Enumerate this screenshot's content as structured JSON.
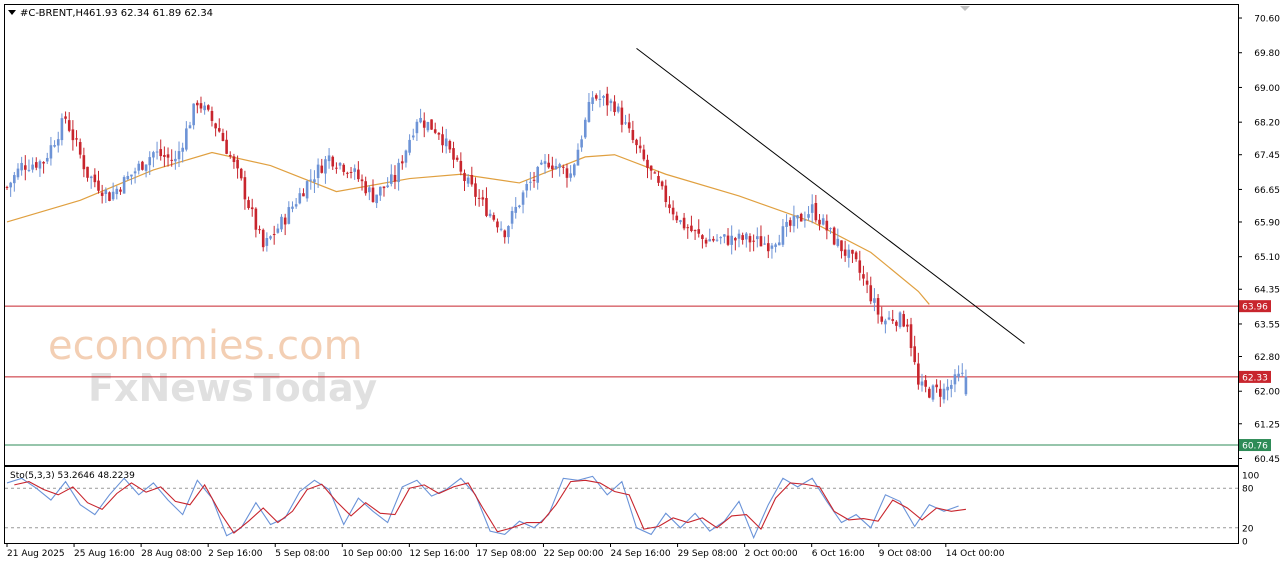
{
  "header": {
    "symbol": "#C-BRENT,H4",
    "ohlc": "61.93 62.34 61.89 62.34",
    "menu_icon": "triangle-down-icon"
  },
  "watermark": {
    "line1": "economies.com",
    "line2": "FxNewsToday"
  },
  "colors": {
    "bull": "#6d93d6",
    "bear": "#c8252d",
    "ma": "#e0a040",
    "hline": "#c8252d",
    "hline_green": "#2e8b57",
    "trendline": "#000000",
    "stoch_main": "#6a93d8",
    "stoch_signal": "#c8252d"
  },
  "chart_data": [
    {
      "type": "candlestick",
      "title": "#C-BRENT,H4",
      "ohlc_last": [
        61.93,
        62.34,
        61.89,
        62.34
      ],
      "ylim": [
        60.3,
        70.9
      ],
      "yticks": [
        "70.60",
        "69.80",
        "69.00",
        "68.20",
        "67.45",
        "66.65",
        "65.90",
        "65.10",
        "64.35",
        "63.55",
        "62.80",
        "62.00",
        "61.25",
        "60.45"
      ],
      "xtick_labels": [
        "21 Aug 2025",
        "25 Aug 16:00",
        "28 Aug 08:00",
        "2 Sep 16:00",
        "5 Sep 08:00",
        "10 Sep 00:00",
        "12 Sep 16:00",
        "17 Sep 08:00",
        "22 Sep 00:00",
        "24 Sep 16:00",
        "29 Sep 08:00",
        "2 Oct 00:00",
        "6 Oct 16:00",
        "9 Oct 08:00",
        "14 Oct 00:00"
      ],
      "close_path": [
        [
          0,
          66.7
        ],
        [
          4,
          67.2
        ],
        [
          10,
          67.3
        ],
        [
          16,
          68.3
        ],
        [
          22,
          67.0
        ],
        [
          28,
          66.5
        ],
        [
          34,
          67.0
        ],
        [
          40,
          67.5
        ],
        [
          46,
          67.3
        ],
        [
          52,
          68.7
        ],
        [
          58,
          68.0
        ],
        [
          64,
          66.8
        ],
        [
          70,
          65.3
        ],
        [
          76,
          66.0
        ],
        [
          82,
          66.8
        ],
        [
          88,
          67.4
        ],
        [
          94,
          67.1
        ],
        [
          100,
          66.5
        ],
        [
          106,
          66.9
        ],
        [
          112,
          68.3
        ],
        [
          118,
          68.0
        ],
        [
          124,
          67.0
        ],
        [
          130,
          66.3
        ],
        [
          136,
          65.7
        ],
        [
          142,
          66.7
        ],
        [
          148,
          67.3
        ],
        [
          154,
          67.0
        ],
        [
          160,
          68.8
        ],
        [
          166,
          68.6
        ],
        [
          172,
          67.6
        ],
        [
          178,
          66.7
        ],
        [
          184,
          65.9
        ],
        [
          190,
          65.5
        ],
        [
          196,
          65.5
        ],
        [
          202,
          65.5
        ],
        [
          208,
          65.4
        ],
        [
          214,
          65.8
        ],
        [
          220,
          66.2
        ],
        [
          226,
          65.5
        ],
        [
          232,
          64.9
        ],
        [
          236,
          64.2
        ],
        [
          239,
          63.6
        ],
        [
          242,
          63.7
        ],
        [
          246,
          63.6
        ],
        [
          249,
          62.1
        ],
        [
          252,
          62.0
        ],
        [
          256,
          62.0
        ],
        [
          260,
          62.3
        ],
        [
          262,
          62.34
        ]
      ],
      "moving_average_path": [
        [
          0,
          65.9
        ],
        [
          20,
          66.4
        ],
        [
          40,
          67.1
        ],
        [
          56,
          67.5
        ],
        [
          72,
          67.2
        ],
        [
          90,
          66.6
        ],
        [
          110,
          66.9
        ],
        [
          124,
          67.0
        ],
        [
          140,
          66.8
        ],
        [
          158,
          67.4
        ],
        [
          166,
          67.45
        ],
        [
          180,
          67.0
        ],
        [
          200,
          66.5
        ],
        [
          220,
          65.9
        ],
        [
          236,
          65.2
        ],
        [
          249,
          64.3
        ],
        [
          252,
          64.0
        ]
      ],
      "trendline": {
        "start": [
          172,
          69.9
        ],
        "end": [
          278,
          63.1
        ]
      },
      "levels": [
        {
          "value": 63.96,
          "label": "63.96"
        },
        {
          "value": 62.33,
          "label": "62.33"
        },
        {
          "value": 60.76,
          "label": "60.76"
        }
      ]
    },
    {
      "type": "line",
      "title": "Sto(5,3,3) 53.2646 48.2239",
      "ylim": [
        0,
        100
      ],
      "yticks": [
        "100",
        "80",
        "20",
        "0"
      ],
      "levels": [
        80,
        20
      ],
      "series": [
        {
          "name": "Sto(5,3,3)",
          "values": [
            [
              0,
              88
            ],
            [
              4,
              95
            ],
            [
              8,
              80
            ],
            [
              12,
              62
            ],
            [
              16,
              90
            ],
            [
              20,
              55
            ],
            [
              24,
              40
            ],
            [
              28,
              70
            ],
            [
              32,
              95
            ],
            [
              36,
              70
            ],
            [
              40,
              88
            ],
            [
              44,
              62
            ],
            [
              48,
              40
            ],
            [
              52,
              92
            ],
            [
              56,
              65
            ],
            [
              60,
              8
            ],
            [
              64,
              20
            ],
            [
              68,
              58
            ],
            [
              72,
              25
            ],
            [
              76,
              35
            ],
            [
              80,
              75
            ],
            [
              84,
              92
            ],
            [
              88,
              78
            ],
            [
              92,
              25
            ],
            [
              96,
              65
            ],
            [
              100,
              45
            ],
            [
              104,
              28
            ],
            [
              108,
              82
            ],
            [
              112,
              92
            ],
            [
              116,
              68
            ],
            [
              120,
              78
            ],
            [
              124,
              95
            ],
            [
              128,
              70
            ],
            [
              132,
              15
            ],
            [
              136,
              10
            ],
            [
              140,
              30
            ],
            [
              144,
              20
            ],
            [
              148,
              40
            ],
            [
              152,
              95
            ],
            [
              156,
              92
            ],
            [
              160,
              98
            ],
            [
              164,
              70
            ],
            [
              168,
              90
            ],
            [
              172,
              20
            ],
            [
              176,
              10
            ],
            [
              180,
              42
            ],
            [
              184,
              20
            ],
            [
              188,
              42
            ],
            [
              192,
              15
            ],
            [
              196,
              30
            ],
            [
              200,
              60
            ],
            [
              204,
              5
            ],
            [
              208,
              55
            ],
            [
              212,
              95
            ],
            [
              216,
              82
            ],
            [
              220,
              95
            ],
            [
              224,
              60
            ],
            [
              228,
              28
            ],
            [
              232,
              40
            ],
            [
              236,
              20
            ],
            [
              240,
              70
            ],
            [
              244,
              60
            ],
            [
              248,
              22
            ],
            [
              252,
              55
            ],
            [
              256,
              45
            ],
            [
              260,
              53
            ]
          ]
        },
        {
          "name": "Signal",
          "values": [
            [
              2,
              85
            ],
            [
              6,
              90
            ],
            [
              10,
              78
            ],
            [
              14,
              70
            ],
            [
              18,
              82
            ],
            [
              22,
              58
            ],
            [
              26,
              48
            ],
            [
              30,
              72
            ],
            [
              34,
              88
            ],
            [
              38,
              74
            ],
            [
              42,
              82
            ],
            [
              46,
              60
            ],
            [
              50,
              55
            ],
            [
              54,
              85
            ],
            [
              58,
              45
            ],
            [
              62,
              12
            ],
            [
              66,
              30
            ],
            [
              70,
              50
            ],
            [
              74,
              28
            ],
            [
              78,
              45
            ],
            [
              82,
              78
            ],
            [
              86,
              86
            ],
            [
              90,
              60
            ],
            [
              94,
              38
            ],
            [
              98,
              58
            ],
            [
              102,
              42
            ],
            [
              106,
              40
            ],
            [
              110,
              80
            ],
            [
              114,
              85
            ],
            [
              118,
              72
            ],
            [
              122,
              82
            ],
            [
              126,
              88
            ],
            [
              130,
              50
            ],
            [
              134,
              14
            ],
            [
              138,
              20
            ],
            [
              142,
              28
            ],
            [
              146,
              28
            ],
            [
              150,
              55
            ],
            [
              154,
              90
            ],
            [
              158,
              92
            ],
            [
              162,
              88
            ],
            [
              166,
              75
            ],
            [
              170,
              70
            ],
            [
              174,
              18
            ],
            [
              178,
              22
            ],
            [
              182,
              35
            ],
            [
              186,
              28
            ],
            [
              190,
              35
            ],
            [
              194,
              20
            ],
            [
              198,
              38
            ],
            [
              202,
              40
            ],
            [
              206,
              18
            ],
            [
              210,
              65
            ],
            [
              214,
              88
            ],
            [
              218,
              86
            ],
            [
              222,
              82
            ],
            [
              226,
              45
            ],
            [
              230,
              32
            ],
            [
              234,
              34
            ],
            [
              238,
              30
            ],
            [
              242,
              62
            ],
            [
              246,
              50
            ],
            [
              250,
              32
            ],
            [
              254,
              50
            ],
            [
              258,
              45
            ],
            [
              262,
              48
            ]
          ]
        }
      ]
    }
  ]
}
